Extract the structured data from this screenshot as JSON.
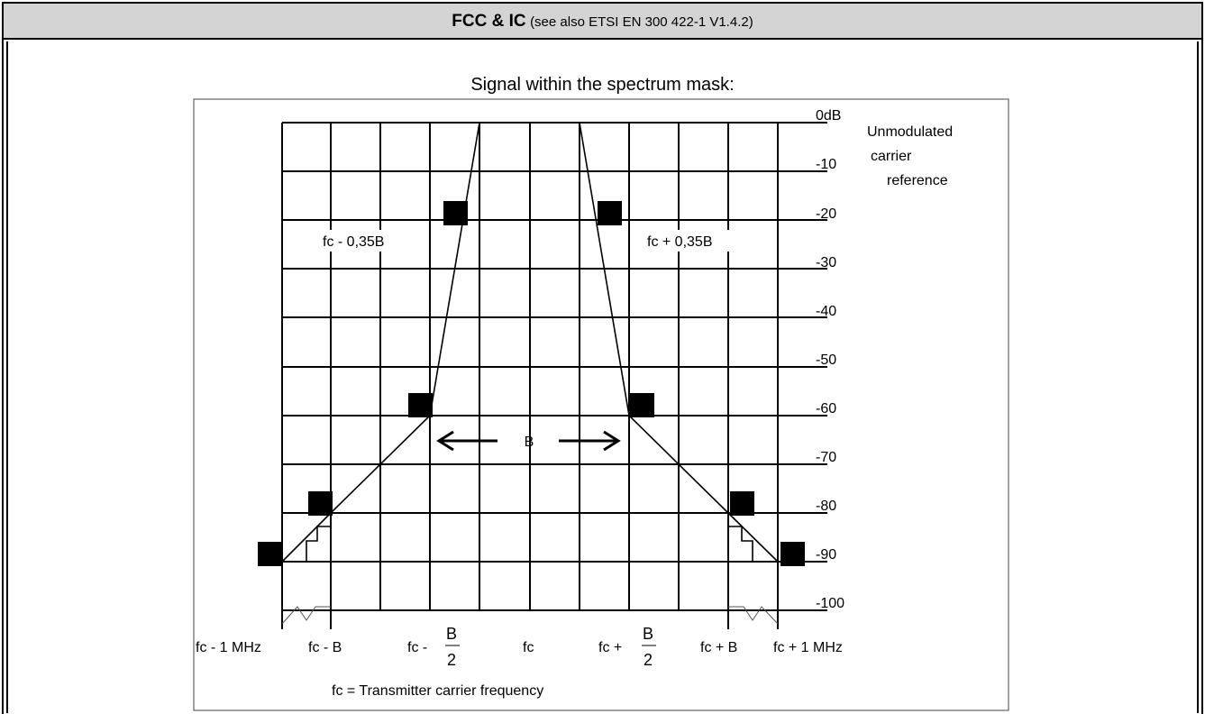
{
  "header": {
    "title": "FCC & IC",
    "subtitle": "(see also ETSI EN 300 422-1 V1.4.2)"
  },
  "diagram": {
    "caption": "Signal within the spectrum mask:",
    "db_labels": [
      "0dB",
      "-10",
      "-20",
      "-30",
      "-40",
      "-50",
      "-60",
      "-70",
      "-80",
      "-90",
      "-100"
    ],
    "reference_lines": [
      "Unmodulated",
      "carrier",
      "reference"
    ],
    "freq_labels": {
      "fc_minus_1mhz": "fc - 1 MHz",
      "fc_minus_b": "fc - B",
      "fc_minus_half_b": "fc -",
      "fc": "fc",
      "fc_plus_half_b": "fc +",
      "fc_plus_b": "fc + B",
      "fc_plus_1mhz": "fc + 1 MHz",
      "frac_num": "B",
      "frac_den": "2"
    },
    "annotations": {
      "minus_035b": "fc - 0,35B",
      "plus_035b": "fc + 0,35B",
      "bandwidth": "B"
    },
    "footnote": "fc = Transmitter carrier frequency",
    "colors": {
      "line": "#000000",
      "marker": "#000000",
      "header_bg": "#d4d4d4"
    }
  }
}
